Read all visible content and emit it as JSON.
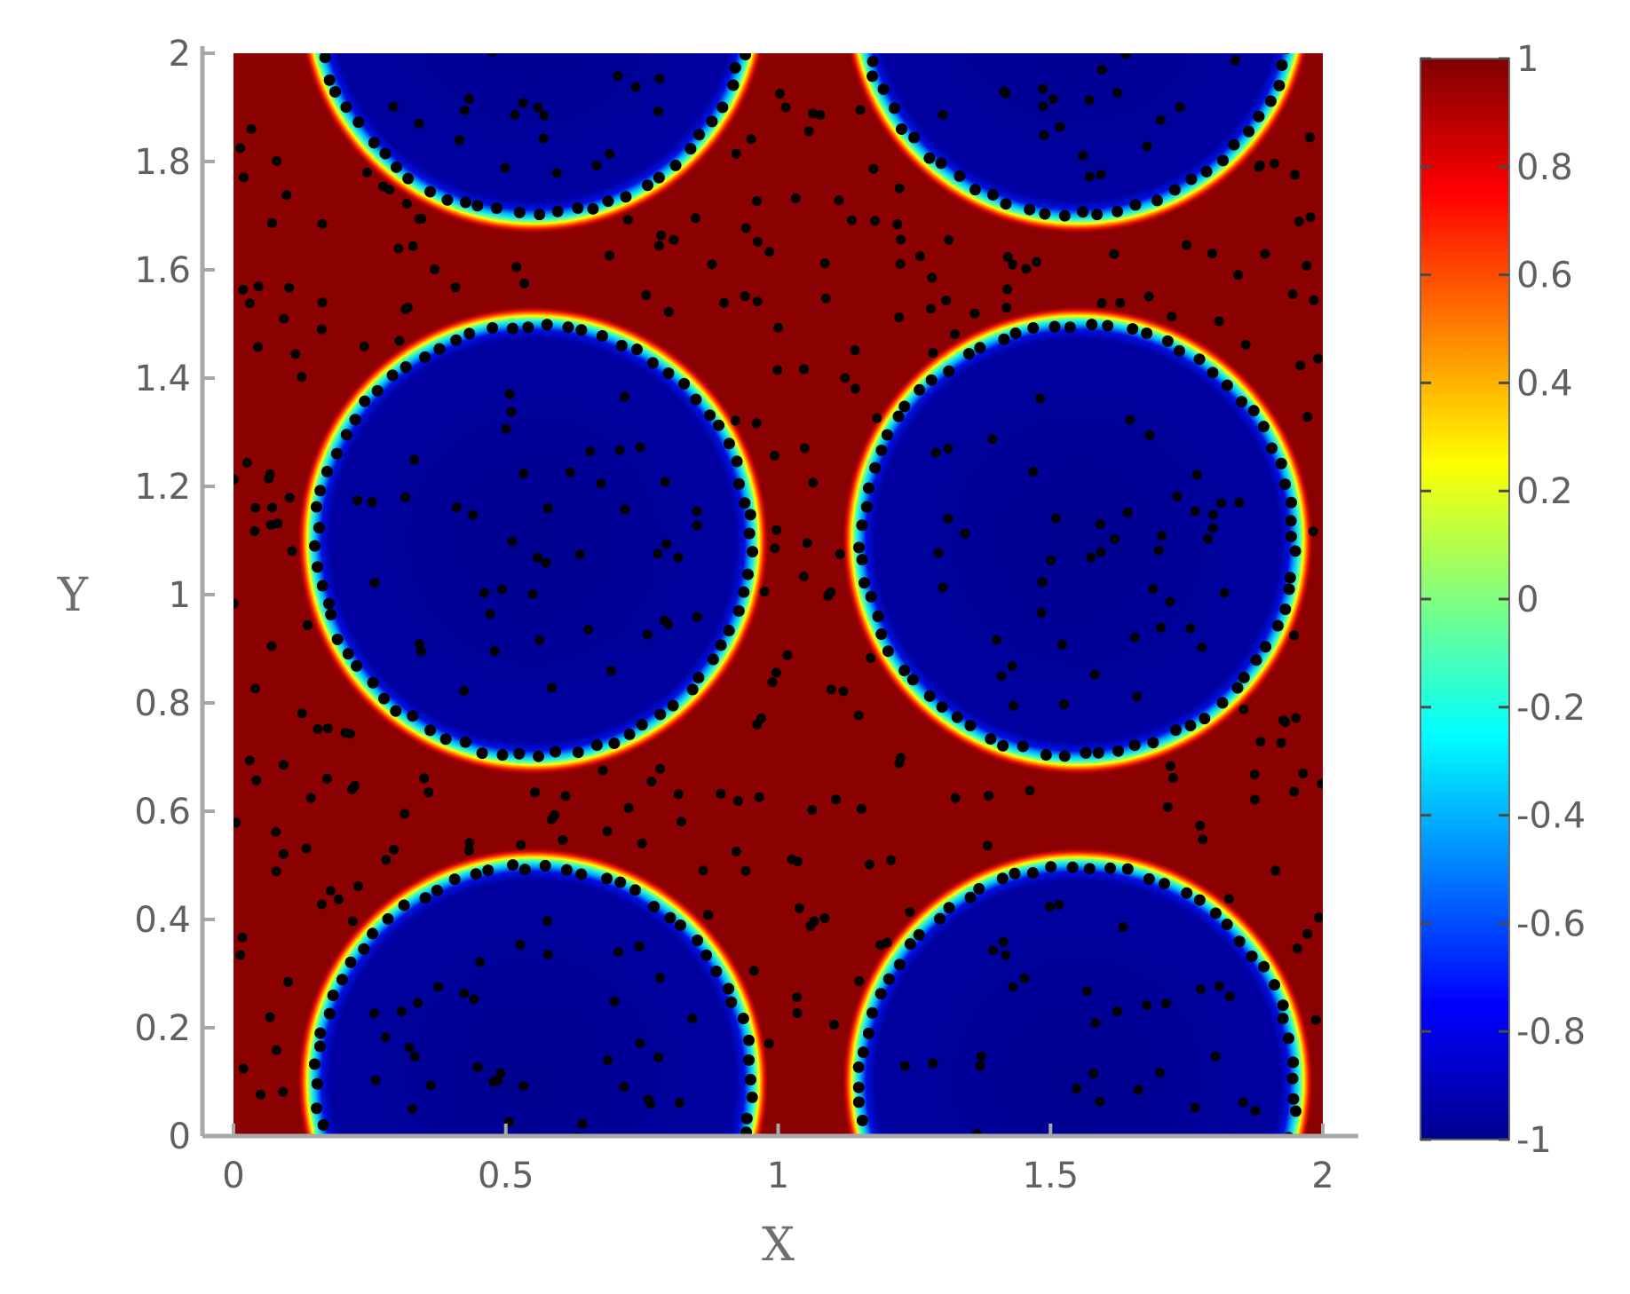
{
  "chart_data": {
    "type": "heatmap",
    "title": "",
    "xlabel": "X",
    "ylabel": "Y",
    "xlim": [
      0,
      2
    ],
    "ylim": [
      0,
      2
    ],
    "x_ticks": [
      "0",
      "0.5",
      "1",
      "1.5",
      "2"
    ],
    "y_ticks": [
      "0",
      "0.2",
      "0.4",
      "0.6",
      "0.8",
      "1",
      "1.2",
      "1.4",
      "1.6",
      "1.8",
      "2"
    ],
    "colorbar": {
      "range": [
        -1,
        1
      ],
      "ticks": [
        "1",
        "0.8",
        "0.6",
        "0.4",
        "0.2",
        "0",
        "-0.2",
        "-0.4",
        "-0.6",
        "-0.8",
        "-1"
      ],
      "colormap": "jet"
    },
    "field": {
      "background_value": 1,
      "droplet_value": -1,
      "droplet_radius": 0.4,
      "droplets": [
        {
          "cx": 0.55,
          "cy": 2.1
        },
        {
          "cx": 1.55,
          "cy": 2.1
        },
        {
          "cx": 0.55,
          "cy": 1.1
        },
        {
          "cx": 1.55,
          "cy": 1.1
        },
        {
          "cx": 0.55,
          "cy": 0.1
        },
        {
          "cx": 1.55,
          "cy": 0.1
        }
      ]
    },
    "particles": {
      "color": "#000000",
      "on_interfaces": true,
      "scattered": true
    },
    "grid": false,
    "legend": "colorbar-right"
  }
}
